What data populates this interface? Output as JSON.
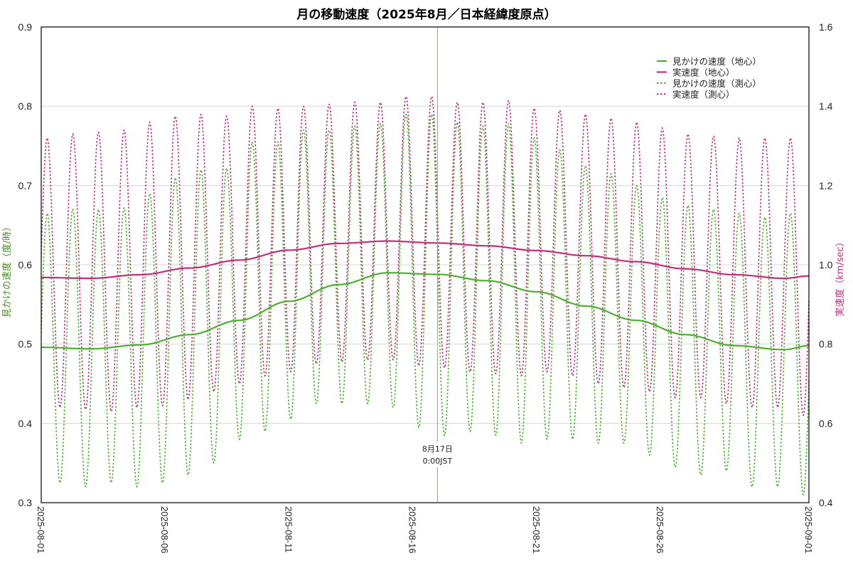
{
  "chart_data": {
    "type": "line",
    "title": "月の移動速度（2025年8月／日本経緯度原点）",
    "xlabel": "",
    "ylabel_left": "見かけの速度（度/時）",
    "ylabel_right": "実速度（km/sec）",
    "ylim_left": [
      0.3,
      0.9
    ],
    "ylim_right": [
      0.4,
      1.6
    ],
    "yticks_left": [
      "0.3",
      "0.4",
      "0.5",
      "0.6",
      "0.7",
      "0.8",
      "0.9"
    ],
    "yticks_right": [
      "0.4",
      "0.6",
      "0.8",
      "1.0",
      "1.2",
      "1.4",
      "1.6"
    ],
    "x_range": [
      "2025-08-01",
      "2025-09-01"
    ],
    "xticks": [
      "2025-08-01",
      "2025-08-06",
      "2025-08-11",
      "2025-08-16",
      "2025-08-21",
      "2025-08-26",
      "2025-09-01"
    ],
    "xtick_day_offsets": [
      0,
      5,
      10,
      15,
      20,
      25,
      31
    ],
    "grid": true,
    "legend_position": "upper right",
    "annotation": {
      "day_offset": 16,
      "line1": "8月17日",
      "line2": "0:00JST",
      "color": "#e08a3c"
    },
    "series": [
      {
        "name": "見かけの速度（地心）",
        "axis": "left",
        "style": "solid",
        "color": "#4daf2f",
        "day": [
          0,
          2,
          4,
          6,
          8,
          10,
          12,
          14,
          16,
          18,
          20,
          22,
          24,
          26,
          28,
          30,
          31
        ],
        "values": [
          0.496,
          0.494,
          0.499,
          0.512,
          0.53,
          0.554,
          0.575,
          0.59,
          0.588,
          0.58,
          0.566,
          0.548,
          0.53,
          0.512,
          0.498,
          0.493,
          0.498
        ]
      },
      {
        "name": "実速度（地心）",
        "axis": "right",
        "style": "solid",
        "color": "#c0307a",
        "day": [
          0,
          2,
          4,
          6,
          8,
          10,
          12,
          14,
          16,
          18,
          20,
          22,
          24,
          26,
          28,
          30,
          31
        ],
        "values": [
          0.968,
          0.966,
          0.975,
          0.992,
          1.012,
          1.037,
          1.054,
          1.06,
          1.055,
          1.048,
          1.036,
          1.023,
          1.008,
          0.99,
          0.975,
          0.966,
          0.972
        ]
      },
      {
        "name": "見かけの速度（測心）",
        "axis": "left",
        "style": "dotted",
        "color": "#4daf2f",
        "period_days": 1.035,
        "first_peak_day": 0.24,
        "peaks": [
          0.665,
          0.67,
          0.67,
          0.672,
          0.69,
          0.71,
          0.72,
          0.722,
          0.755,
          0.755,
          0.77,
          0.77,
          0.775,
          0.778,
          0.79,
          0.79,
          0.78,
          0.775,
          0.778,
          0.76,
          0.745,
          0.725,
          0.715,
          0.7,
          0.685,
          0.675,
          0.67,
          0.665,
          0.66,
          0.665,
          0.67
        ],
        "troughs": [
          0.325,
          0.32,
          0.325,
          0.32,
          0.325,
          0.335,
          0.35,
          0.38,
          0.39,
          0.405,
          0.425,
          0.425,
          0.425,
          0.42,
          0.395,
          0.385,
          0.39,
          0.385,
          0.375,
          0.38,
          0.38,
          0.375,
          0.375,
          0.36,
          0.345,
          0.335,
          0.34,
          0.32,
          0.32,
          0.31,
          0.315
        ]
      },
      {
        "name": "実速度（測心）",
        "axis": "right",
        "style": "dotted",
        "color": "#c0307a",
        "period_days": 1.035,
        "first_peak_day": 0.24,
        "peaks": [
          1.32,
          1.33,
          1.335,
          1.34,
          1.36,
          1.375,
          1.38,
          1.375,
          1.4,
          1.395,
          1.4,
          1.405,
          1.41,
          1.41,
          1.425,
          1.425,
          1.41,
          1.41,
          1.415,
          1.395,
          1.39,
          1.38,
          1.37,
          1.36,
          1.345,
          1.33,
          1.325,
          1.32,
          1.32,
          1.32,
          1.34
        ],
        "troughs": [
          0.64,
          0.635,
          0.63,
          0.64,
          0.645,
          0.66,
          0.68,
          0.7,
          0.72,
          0.73,
          0.75,
          0.755,
          0.76,
          0.76,
          0.745,
          0.74,
          0.73,
          0.725,
          0.72,
          0.73,
          0.72,
          0.7,
          0.69,
          0.68,
          0.665,
          0.665,
          0.65,
          0.64,
          0.64,
          0.62,
          0.62
        ]
      }
    ]
  }
}
